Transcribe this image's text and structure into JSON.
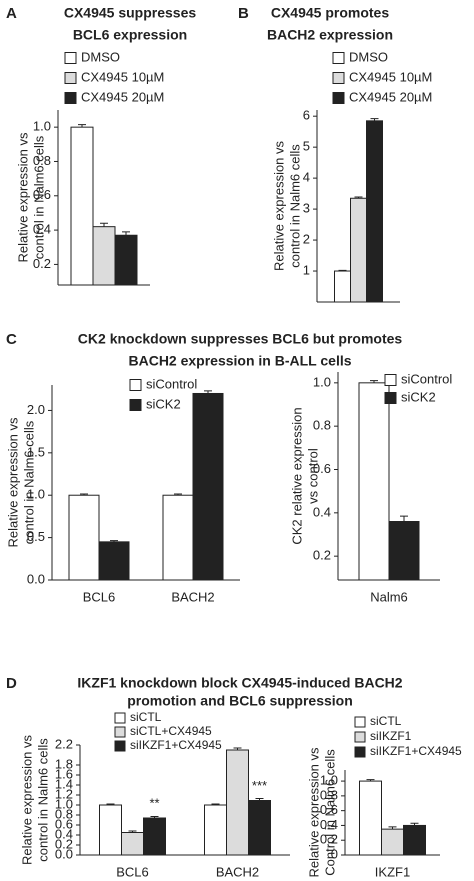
{
  "panels": [
    {
      "label": "A",
      "title": [
        "CX4945  suppresses",
        "BCL6 expression"
      ]
    },
    {
      "label": "B",
      "title": [
        "CX4945  promotes",
        "BACH2 expression"
      ]
    },
    {
      "label": "C",
      "title": [
        "CK2 knockdown  suppresses BCL6 but promotes",
        "BACH2 expression in B-ALL cells"
      ]
    },
    {
      "label": "D",
      "title": [
        "IKZF1 knockdown block CX4945-induced BACH2",
        "promotion and BCL6 suppression"
      ]
    }
  ],
  "chart_data": [
    {
      "type": "bar",
      "ylabel": [
        "Relative expression vs",
        "control in Nalm6 cells"
      ],
      "categories": [
        null
      ],
      "series": [
        {
          "name": "DMSO",
          "color": "#ffffff",
          "values": [
            1.0
          ],
          "errors": [
            0.015
          ]
        },
        {
          "name": "CX4945  10µM",
          "color": "#dcdcdc",
          "values": [
            0.42
          ],
          "errors": [
            0.02
          ]
        },
        {
          "name": "CX4945  20µM",
          "color": "#222222",
          "values": [
            0.37
          ],
          "errors": [
            0.02
          ]
        }
      ],
      "ylim": [
        0.08,
        1.1
      ],
      "yticks": [
        0.2,
        0.4,
        0.6,
        0.8,
        {
          "value": 1,
          "label": "1.0"
        }
      ]
    },
    {
      "type": "bar",
      "ylabel": [
        "Relative expression vs",
        "control in Nalm6 cells"
      ],
      "categories": [
        null
      ],
      "series": [
        {
          "name": "DMSO",
          "color": "#ffffff",
          "values": [
            1.0
          ],
          "errors": [
            0.02
          ]
        },
        {
          "name": "CX4945  10µM",
          "color": "#dcdcdc",
          "values": [
            3.35
          ],
          "errors": [
            0.04
          ]
        },
        {
          "name": "CX4945  20µM",
          "color": "#222222",
          "values": [
            5.85
          ],
          "errors": [
            0.07
          ]
        }
      ],
      "ylim": [
        0,
        6.2
      ],
      "yticks": [
        1,
        2,
        3,
        4,
        5,
        6
      ]
    },
    {
      "type": "bar",
      "ylabel": [
        "Relative expression vs",
        "control in Nalm6 cells"
      ],
      "categories": [
        "BCL6",
        "BACH2"
      ],
      "series": [
        {
          "name": "siControl",
          "color": "#ffffff",
          "values": [
            1.0,
            1.0
          ],
          "errors": [
            0.015,
            0.015
          ]
        },
        {
          "name": "siCK2",
          "color": "#222222",
          "values": [
            0.45,
            2.2
          ],
          "errors": [
            0.015,
            0.03
          ]
        }
      ],
      "ylim": [
        0,
        2.3
      ],
      "yticks": [
        {
          "value": 0,
          "label": "0.0"
        },
        0.5,
        {
          "value": 1,
          "label": "1.0"
        },
        1.5,
        {
          "value": 2,
          "label": "2.0"
        }
      ]
    },
    {
      "type": "bar",
      "ylabel": [
        "CK2 relative expression",
        "vs control"
      ],
      "categories": [
        "Nalm6"
      ],
      "series": [
        {
          "name": "siControl",
          "color": "#ffffff",
          "values": [
            1.0
          ],
          "errors": [
            0.01
          ]
        },
        {
          "name": "siCK2",
          "color": "#222222",
          "values": [
            0.36
          ],
          "errors": [
            0.025
          ]
        }
      ],
      "ylim": [
        0.09,
        1.05
      ],
      "yticks": [
        0.2,
        0.4,
        0.6,
        0.8,
        {
          "value": 1,
          "label": "1.0"
        }
      ]
    },
    {
      "type": "bar",
      "ylabel": [
        "Relative expression vs",
        "control in Nalm6 cells"
      ],
      "categories": [
        "BCL6",
        "BACH2"
      ],
      "series": [
        {
          "name": "siCTL",
          "color": "#ffffff",
          "values": [
            1.0,
            1.0
          ],
          "errors": [
            0.02,
            0.02
          ]
        },
        {
          "name": "siCTL+CX4945",
          "color": "#dcdcdc",
          "values": [
            0.45,
            2.1
          ],
          "errors": [
            0.03,
            0.04
          ]
        },
        {
          "name": "siIKZF1+CX4945",
          "color": "#222222",
          "values": [
            0.74,
            1.09
          ],
          "errors": [
            0.03,
            0.04
          ]
        }
      ],
      "annotations": [
        "**",
        "***"
      ],
      "ylim": [
        0,
        2.2
      ],
      "yticks": [
        {
          "value": 0,
          "label": "0.0"
        },
        0.2,
        0.4,
        0.6,
        0.8,
        {
          "value": 1,
          "label": "1.0"
        },
        1.2,
        1.4,
        1.6,
        1.8,
        2.2
      ]
    },
    {
      "type": "bar",
      "ylabel": [
        "Relative expression vs",
        "Control in Nalm6 cells"
      ],
      "categories": [
        "IKZF1"
      ],
      "series": [
        {
          "name": "siCTL",
          "color": "#ffffff",
          "values": [
            1.0
          ],
          "errors": [
            0.02
          ]
        },
        {
          "name": "siIKZF1",
          "color": "#dcdcdc",
          "values": [
            0.35
          ],
          "errors": [
            0.03
          ]
        },
        {
          "name": "siIKZF1+CX4945",
          "color": "#222222",
          "values": [
            0.4
          ],
          "errors": [
            0.03
          ]
        }
      ],
      "ylim": [
        0,
        1.15
      ],
      "yticks": [
        0,
        0.2,
        0.4,
        0.6,
        0.8,
        {
          "value": 1,
          "label": "1.0"
        }
      ]
    }
  ]
}
